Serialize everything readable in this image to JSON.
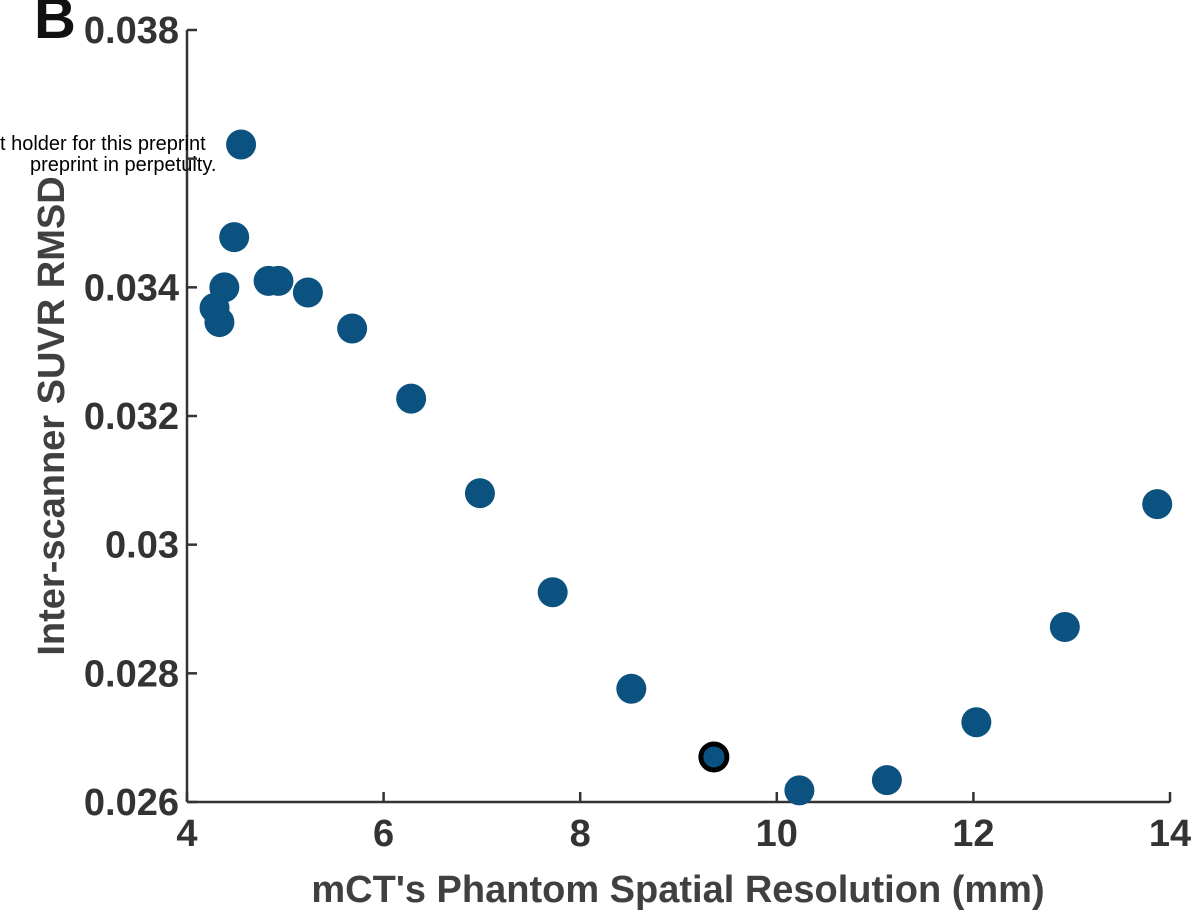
{
  "panel_letter": "B",
  "watermark": {
    "line1": "t holder for this preprint",
    "line2": "preprint in perpetuity."
  },
  "colors": {
    "marker": "#0c5280",
    "highlight_edge": "#000000",
    "axis": "#333333"
  },
  "chart_data": {
    "type": "scatter",
    "title": "",
    "xlabel": "mCT's Phantom Spatial Resolution (mm)",
    "ylabel": "Inter-scanner SUVR RMSD",
    "xlim": [
      4,
      14
    ],
    "ylim": [
      0.026,
      0.038
    ],
    "xticks": [
      "4",
      "6",
      "8",
      "10",
      "12",
      "14"
    ],
    "yticks": [
      "0.026",
      "0.028",
      "0.03",
      "0.032",
      "0.034",
      "",
      "0.038"
    ],
    "grid": false,
    "x": [
      4.55,
      4.48,
      4.38,
      4.28,
      4.33,
      4.83,
      4.93,
      5.23,
      5.68,
      6.28,
      6.98,
      7.72,
      8.52,
      9.36,
      10.23,
      11.12,
      12.03,
      12.93,
      13.87
    ],
    "y": [
      0.03622,
      0.03478,
      0.034,
      0.03368,
      0.03346,
      0.0341,
      0.0341,
      0.03392,
      0.03336,
      0.03227,
      0.0308,
      0.02926,
      0.02776,
      0.0267,
      0.02618,
      0.02634,
      0.02724,
      0.02872,
      0.03063
    ],
    "highlighted_index": 13
  }
}
